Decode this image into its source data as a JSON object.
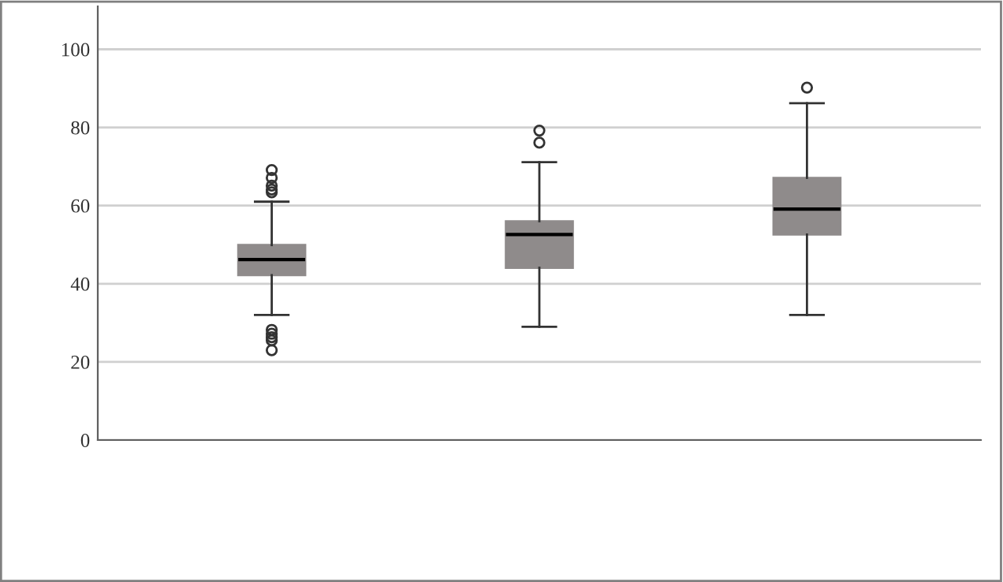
{
  "chart_data": {
    "type": "box",
    "categories": [
      null,
      null,
      null
    ],
    "color": "#8f8b8b",
    "boxes": [
      {
        "low": 32.0,
        "q1": 42.2,
        "median": 46.2,
        "q3": 49.9,
        "high": 61.0,
        "outliers": [
          69.1,
          67.1,
          65.1,
          64.1,
          63.4,
          28.2,
          27.2,
          26.3,
          25.5,
          23.0
        ]
      },
      {
        "low": 29.0,
        "q1": 44.1,
        "median": 52.6,
        "q3": 56.0,
        "high": 71.1,
        "outliers": [
          79.2,
          76.1
        ]
      },
      {
        "low": 32.0,
        "q1": 52.6,
        "median": 59.1,
        "q3": 67.1,
        "high": 86.2,
        "outliers": [
          90.2
        ]
      }
    ],
    "ylim": [
      0,
      111
    ],
    "yticks": [
      0,
      20,
      40,
      60,
      80,
      100
    ],
    "grid": "y"
  }
}
